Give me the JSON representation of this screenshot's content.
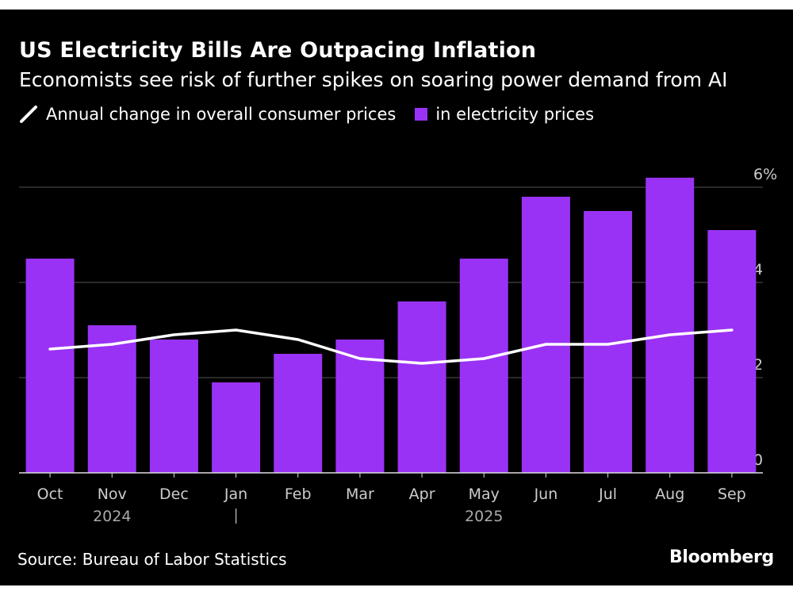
{
  "title": "US Electricity Bills Are Outpacing Inflation",
  "subtitle": "Economists see risk of further spikes on soaring power demand from AI",
  "legend": {
    "line_label": "Annual change in overall consumer prices",
    "bar_label": "in electricity prices"
  },
  "source": "Source: Bureau of Labor Statistics",
  "brand": "Bloomberg",
  "colors": {
    "background": "#000000",
    "bar": "#9A32F5",
    "line": "#ffffff",
    "grid": "#555555",
    "text": "#ffffff",
    "axis_text": "#cccccc"
  },
  "chart_data": {
    "type": "bar",
    "title": "US Electricity Bills Are Outpacing Inflation",
    "subtitle": "Economists see risk of further spikes on soaring power demand from AI",
    "categories": [
      "Oct",
      "Nov",
      "Dec",
      "Jan",
      "Feb",
      "Mar",
      "Apr",
      "May",
      "Jun",
      "Jul",
      "Aug",
      "Sep"
    ],
    "year_labels": [
      {
        "label": "2024",
        "category": "Nov"
      },
      {
        "label": "2025",
        "category": "May"
      }
    ],
    "year_divider_before": "Jan",
    "series": [
      {
        "name": "in electricity prices",
        "kind": "bar",
        "values": [
          4.5,
          3.1,
          2.8,
          1.9,
          2.5,
          2.8,
          3.6,
          4.5,
          5.8,
          5.5,
          6.2,
          5.1
        ]
      },
      {
        "name": "Annual change in overall consumer prices",
        "kind": "line",
        "values": [
          2.6,
          2.7,
          2.9,
          3.0,
          2.8,
          2.4,
          2.3,
          2.4,
          2.7,
          2.7,
          2.9,
          3.0
        ]
      }
    ],
    "y_ticks": [
      0,
      2,
      4,
      6
    ],
    "y_tick_labels": [
      "0",
      "2",
      "4",
      "6%"
    ],
    "ylim": [
      0,
      6
    ],
    "xlabel": "",
    "ylabel": "",
    "grid": true,
    "legend_position": "top-left"
  }
}
